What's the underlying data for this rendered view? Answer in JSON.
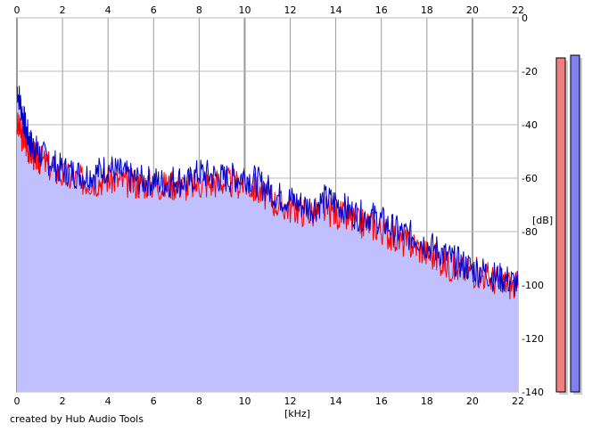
{
  "chart_data": {
    "type": "area",
    "xlabel": "[kHz]",
    "ylabel": "[dB]",
    "xlim": [
      0,
      22
    ],
    "ylim": [
      -140,
      0
    ],
    "x_ticks": [
      "0",
      "2",
      "4",
      "6",
      "8",
      "10",
      "12",
      "14",
      "16",
      "18",
      "20",
      "22"
    ],
    "y_ticks": [
      "0",
      "-20",
      "-40",
      "-60",
      "-80",
      "-100",
      "-120",
      "-140"
    ],
    "grid": true,
    "credit": "created by Hub Audio Tools",
    "series": [
      {
        "color": "#ff0000",
        "x": [
          0,
          0.2,
          0.4,
          0.6,
          0.8,
          1,
          1.5,
          2,
          2.5,
          3,
          3.5,
          4,
          4.5,
          5,
          5.5,
          6,
          6.5,
          7,
          7.5,
          8,
          8.5,
          9,
          9.5,
          10,
          10.5,
          11,
          11.5,
          12,
          12.5,
          13,
          13.5,
          14,
          14.5,
          15,
          15.5,
          16,
          16.5,
          17,
          17.5,
          18,
          18.5,
          19,
          19.5,
          20,
          20.5,
          21,
          21.5,
          22
        ],
        "values": [
          -40,
          -44,
          -47,
          -50,
          -52,
          -53,
          -56,
          -59,
          -60,
          -61,
          -61,
          -60,
          -61,
          -62,
          -62,
          -62,
          -63,
          -62,
          -63,
          -62,
          -62,
          -61,
          -62,
          -62,
          -64,
          -67,
          -70,
          -71,
          -72,
          -73,
          -72,
          -73,
          -75,
          -77,
          -77,
          -79,
          -82,
          -84,
          -85,
          -88,
          -90,
          -93,
          -94,
          -95,
          -96,
          -98,
          -99,
          -101
        ]
      },
      {
        "color": "#0000cc",
        "x": [
          0,
          0.2,
          0.4,
          0.6,
          0.8,
          1,
          1.5,
          2,
          2.5,
          3,
          3.5,
          4,
          4.5,
          5,
          5.5,
          6,
          6.5,
          7,
          7.5,
          8,
          8.5,
          9,
          9.5,
          10,
          10.5,
          11,
          11.5,
          12,
          12.5,
          13,
          13.5,
          14,
          14.5,
          15,
          15.5,
          16,
          16.5,
          17,
          17.5,
          18,
          18.5,
          19,
          19.5,
          20,
          20.5,
          21,
          21.5,
          22
        ],
        "values": [
          -26,
          -34,
          -42,
          -47,
          -49,
          -51,
          -54,
          -57,
          -58,
          -59,
          -58,
          -56,
          -58,
          -60,
          -61,
          -61,
          -62,
          -60,
          -62,
          -58,
          -59,
          -60,
          -60,
          -59,
          -61,
          -64,
          -67,
          -68,
          -70,
          -71,
          -68,
          -69,
          -72,
          -74,
          -74,
          -76,
          -79,
          -81,
          -82,
          -85,
          -87,
          -90,
          -92,
          -94,
          -95,
          -97,
          -98,
          -100
        ]
      }
    ],
    "level_meters": [
      {
        "color": "#f08080",
        "value": -15
      },
      {
        "color": "#8080f0",
        "value": -14
      }
    ]
  }
}
